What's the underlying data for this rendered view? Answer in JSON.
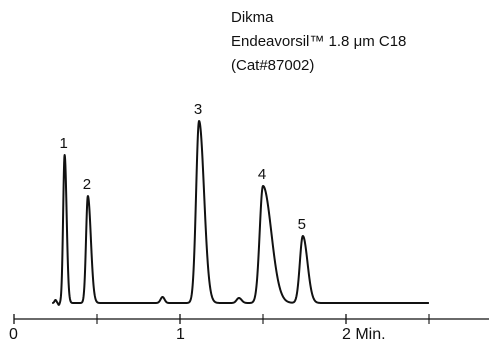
{
  "caption": {
    "line1": "Dikma",
    "line2": "Endeavorsil™ 1.8 μm C18",
    "line3": "(Cat#87002)"
  },
  "chart_data": {
    "type": "line",
    "title": "",
    "xlabel": "",
    "ylabel": "",
    "x_unit": "Min.",
    "xlim": [
      0,
      2.85
    ],
    "ticks": [
      {
        "value": 0,
        "label": "0"
      },
      {
        "value": 1,
        "label": "1"
      },
      {
        "value": 2,
        "label": "2 Min."
      }
    ],
    "minor_ticks": [
      0.5,
      1.5,
      2.5
    ],
    "signal_end": 2.5,
    "baseline": 0,
    "peaks": [
      {
        "label": "1",
        "time": 0.305,
        "height": 148,
        "width": 0.009,
        "tail": 0.012
      },
      {
        "label": "2",
        "time": 0.445,
        "height": 107,
        "width": 0.011,
        "tail": 0.018
      },
      {
        "label": "3",
        "time": 1.115,
        "height": 182,
        "width": 0.018,
        "tail": 0.03
      },
      {
        "label": "4",
        "time": 1.5,
        "height": 117,
        "width": 0.02,
        "tail": 0.05
      },
      {
        "label": "5",
        "time": 1.74,
        "height": 67,
        "width": 0.018,
        "tail": 0.028
      }
    ],
    "minor_features": [
      {
        "time": 0.25,
        "height": 3,
        "width": 0.006,
        "tail": 0.006
      },
      {
        "time": 0.895,
        "height": 6,
        "width": 0.012,
        "tail": 0.012
      },
      {
        "time": 1.355,
        "height": 5,
        "width": 0.014,
        "tail": 0.016
      }
    ]
  }
}
